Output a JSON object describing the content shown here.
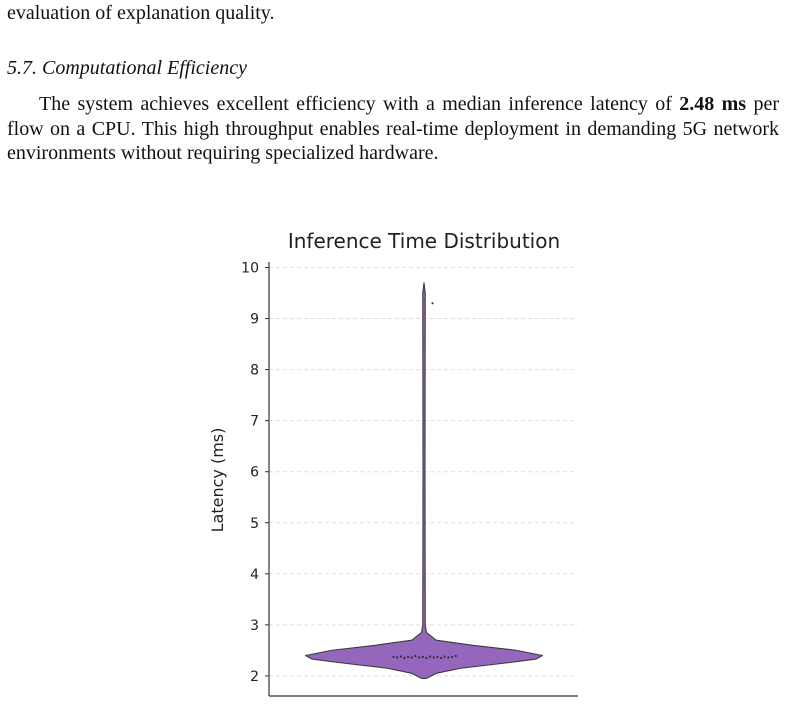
{
  "text": {
    "line1": "evaluation of explanation quality.",
    "section_heading": "5.7. Computational Efficiency",
    "para_start": "The system achieves excellent efficiency with a median inference latency of ",
    "para_bold": "2.48 ms",
    "para_end": " per flow on a CPU. This high throughput enables real-time deployment in demanding 5G network environments without requiring specialized hardware."
  },
  "chart_data": {
    "type": "violin",
    "title": "Inference Time Distribution",
    "xlabel": "",
    "ylabel": "Latency (ms)",
    "ylim": [
      1.6,
      10.05
    ],
    "yticks": [
      2,
      3,
      4,
      5,
      6,
      7,
      8,
      9,
      10
    ],
    "grid": "horizontal dashed",
    "violin_color": "#9467bd",
    "violin_outline": "#3a3a3a",
    "density_profile": [
      {
        "y": 1.95,
        "half_width": 0.02
      },
      {
        "y": 2.05,
        "half_width": 0.1
      },
      {
        "y": 2.15,
        "half_width": 0.3
      },
      {
        "y": 2.25,
        "half_width": 0.66
      },
      {
        "y": 2.33,
        "half_width": 0.92
      },
      {
        "y": 2.4,
        "half_width": 0.97
      },
      {
        "y": 2.5,
        "half_width": 0.76
      },
      {
        "y": 2.6,
        "half_width": 0.4
      },
      {
        "y": 2.7,
        "half_width": 0.1
      },
      {
        "y": 2.85,
        "half_width": 0.02
      },
      {
        "y": 3.0,
        "half_width": 0.01
      },
      {
        "y": 6.0,
        "half_width": 0.008
      },
      {
        "y": 9.5,
        "half_width": 0.01
      },
      {
        "y": 9.7,
        "half_width": 0.0
      }
    ],
    "points": [
      {
        "x": -0.25,
        "y": 2.37
      },
      {
        "x": -0.22,
        "y": 2.36
      },
      {
        "x": -0.19,
        "y": 2.38
      },
      {
        "x": -0.16,
        "y": 2.35
      },
      {
        "x": -0.13,
        "y": 2.37
      },
      {
        "x": -0.1,
        "y": 2.36
      },
      {
        "x": -0.07,
        "y": 2.39
      },
      {
        "x": -0.04,
        "y": 2.36
      },
      {
        "x": -0.01,
        "y": 2.37
      },
      {
        "x": 0.02,
        "y": 2.35
      },
      {
        "x": 0.05,
        "y": 2.38
      },
      {
        "x": 0.08,
        "y": 2.36
      },
      {
        "x": 0.11,
        "y": 2.37
      },
      {
        "x": 0.14,
        "y": 2.35
      },
      {
        "x": 0.17,
        "y": 2.38
      },
      {
        "x": 0.2,
        "y": 2.36
      },
      {
        "x": 0.23,
        "y": 2.37
      },
      {
        "x": 0.26,
        "y": 2.39
      },
      {
        "x": 0.07,
        "y": 9.3
      }
    ]
  }
}
